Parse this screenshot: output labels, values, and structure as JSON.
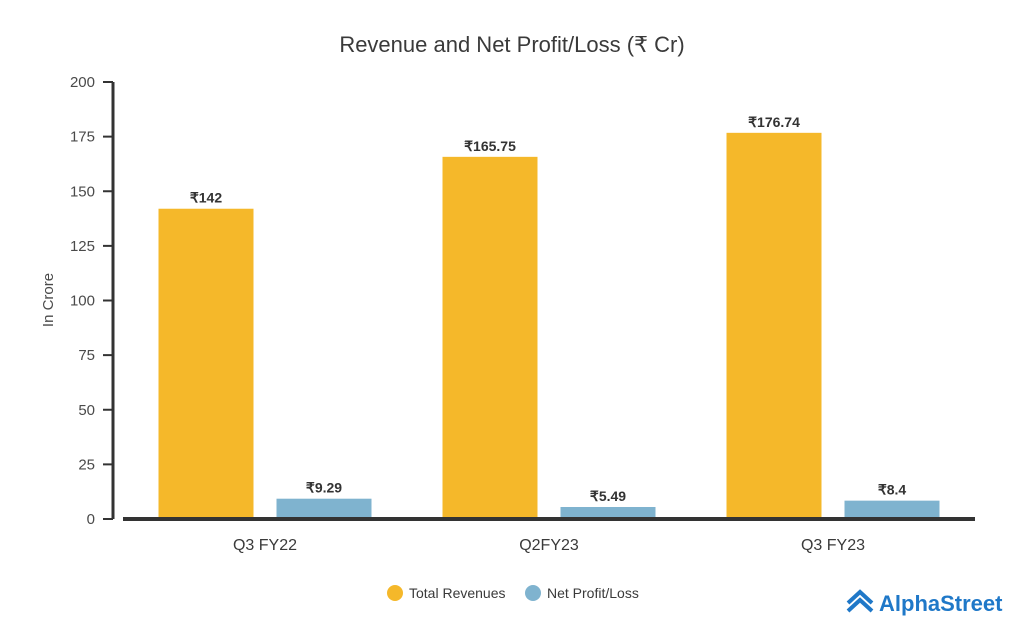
{
  "chart_data": {
    "type": "bar",
    "title": "Revenue and Net Profit/Loss (₹ Cr)",
    "xlabel": "",
    "ylabel": "In Crore",
    "ylim": [
      0,
      200
    ],
    "yticks": [
      0,
      25,
      50,
      75,
      100,
      125,
      150,
      175,
      200
    ],
    "grid": false,
    "categories": [
      "Q3 FY22",
      "Q2FY23",
      "Q3 FY23"
    ],
    "series": [
      {
        "name": "Total Revenues",
        "color": "#f5b82a",
        "values": [
          142,
          165.75,
          176.74
        ],
        "labels": [
          "₹142",
          "₹165.75",
          "₹176.74"
        ]
      },
      {
        "name": "Net Profit/Loss",
        "color": "#7fb3cf",
        "values": [
          9.29,
          5.49,
          8.4
        ],
        "labels": [
          "₹9.29",
          "₹5.49",
          "₹8.4"
        ]
      }
    ],
    "legend_position": "bottom-center"
  },
  "brand": {
    "name": "AlphaStreet",
    "color": "#1f78c8",
    "icon": "alphastreet-logo-icon"
  },
  "axis_color": "#333333"
}
